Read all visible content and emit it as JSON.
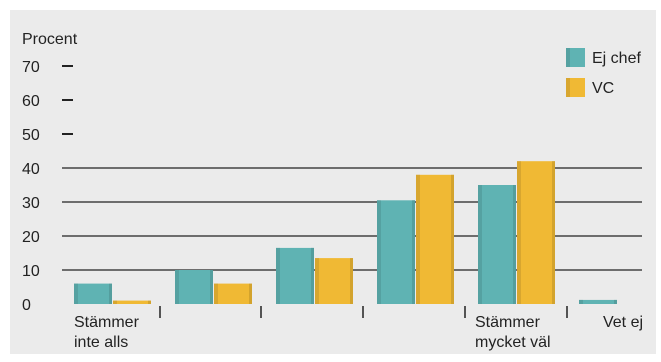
{
  "chart_data": {
    "type": "bar",
    "ylabel": "Procent",
    "ylim": [
      0,
      70
    ],
    "yticks": [
      0,
      10,
      20,
      30,
      40,
      50,
      60,
      70
    ],
    "grid": "y-major (from 10 upward)",
    "legend_position": "top-right",
    "categories": [
      "Stämmer inte alls",
      "",
      "",
      "",
      "Stämmer mycket väl",
      "Vet ej"
    ],
    "category_label_lines": [
      [
        "Stämmer",
        "inte alls"
      ],
      [],
      [],
      [],
      [
        "Stämmer",
        "mycket väl"
      ],
      [
        "Vet ej"
      ]
    ],
    "series": [
      {
        "name": "Ej chef",
        "values": [
          6,
          10,
          16.5,
          30.5,
          35,
          1.2
        ],
        "color": "#5fb3b3"
      },
      {
        "name": "VC",
        "values": [
          1,
          6,
          13.5,
          38,
          42,
          0
        ],
        "color": "#f0b934"
      }
    ]
  },
  "colors": {
    "background": "#ebebeb",
    "grid": "#222222",
    "text": "#222222"
  }
}
